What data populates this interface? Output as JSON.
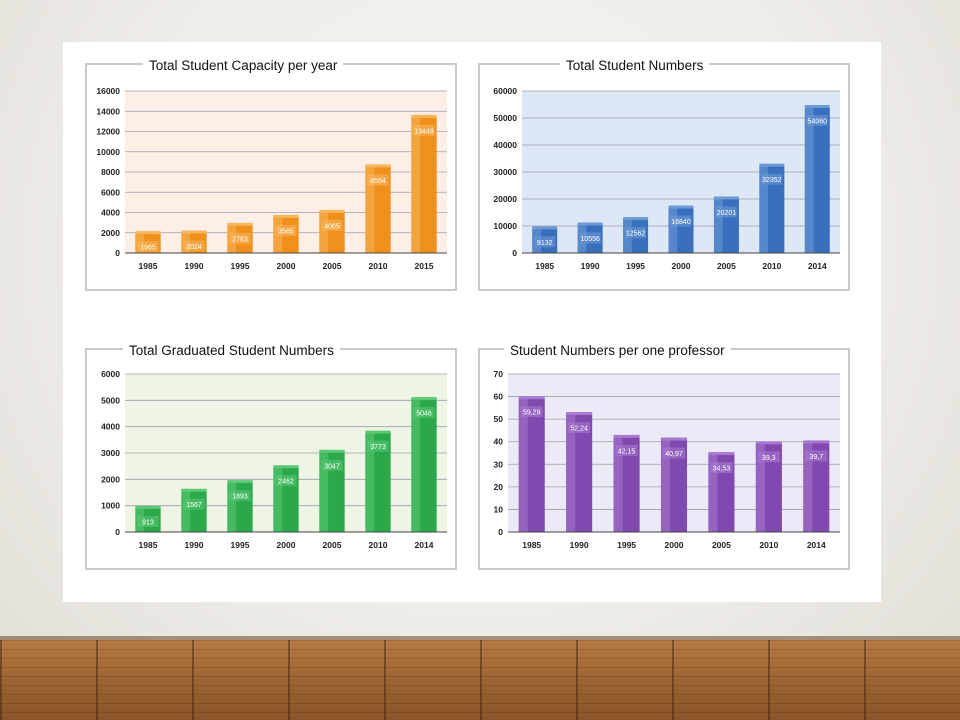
{
  "slide": {
    "colors": {
      "background": "#f3f1ec",
      "panel": "#ffffff",
      "floor": "#9c6433"
    }
  },
  "chart_data": [
    {
      "type": "bar",
      "title": "Total Student Capacity per year",
      "categories": [
        "1985",
        "1990",
        "1995",
        "2000",
        "2005",
        "2010",
        "2015"
      ],
      "values": [
        1965,
        2024,
        2783,
        3565,
        4065,
        8554,
        13448
      ],
      "value_labels": [
        "1965",
        "2024",
        "2783",
        "3565",
        "4065",
        "8554",
        "13448"
      ],
      "yticks": [
        "0",
        "2000",
        "4000",
        "6000",
        "8000",
        "10000",
        "12000",
        "14000",
        "16000"
      ],
      "ylim": [
        0,
        16000
      ],
      "xlabel": "",
      "ylabel": "",
      "grid": true,
      "colors": {
        "bar": "#f0901c",
        "bar_light": "#f8b55a",
        "plot_bg": "#fdeee6"
      }
    },
    {
      "type": "bar",
      "title": "Total Student Numbers",
      "categories": [
        "1985",
        "1990",
        "1995",
        "2000",
        "2005",
        "2010",
        "2014"
      ],
      "values": [
        9132,
        10556,
        12562,
        16840,
        20201,
        32352,
        54060
      ],
      "value_labels": [
        "9132",
        "10556",
        "12562",
        "16840",
        "20201",
        "32352",
        "54060"
      ],
      "yticks": [
        "0",
        "10000",
        "20000",
        "30000",
        "40000",
        "50000",
        "60000"
      ],
      "ylim": [
        0,
        60000
      ],
      "xlabel": "",
      "ylabel": "",
      "grid": true,
      "colors": {
        "bar": "#3a6fbd",
        "bar_light": "#6c9ad6",
        "plot_bg": "#dde7f5"
      }
    },
    {
      "type": "bar",
      "title": "Total Graduated Student Numbers",
      "categories": [
        "1985",
        "1990",
        "1995",
        "2000",
        "2005",
        "2010",
        "2014"
      ],
      "values": [
        913,
        1567,
        1893,
        2462,
        3047,
        3773,
        5046
      ],
      "value_labels": [
        "913",
        "1567",
        "1893",
        "2462",
        "3047",
        "3773",
        "5046"
      ],
      "yticks": [
        "0",
        "1000",
        "2000",
        "3000",
        "4000",
        "5000",
        "6000"
      ],
      "ylim": [
        0,
        6000
      ],
      "xlabel": "",
      "ylabel": "",
      "grid": true,
      "colors": {
        "bar": "#2aa84a",
        "bar_light": "#5cc874",
        "plot_bg": "#eef5e4"
      }
    },
    {
      "type": "bar",
      "title": "Student Numbers per one professor",
      "categories": [
        "1985",
        "1990",
        "1995",
        "2000",
        "2005",
        "2010",
        "2014"
      ],
      "values": [
        59.29,
        52.24,
        42.15,
        40.97,
        34.53,
        39.3,
        39.7
      ],
      "value_labels": [
        "59,29",
        "52,24",
        "42,15",
        "40,97",
        "34,53",
        "39,3",
        "39,7"
      ],
      "yticks": [
        "0",
        "10",
        "20",
        "30",
        "40",
        "50",
        "60",
        "70"
      ],
      "ylim": [
        0,
        70
      ],
      "xlabel": "",
      "ylabel": "",
      "grid": true,
      "colors": {
        "bar": "#8149b0",
        "bar_light": "#a878d0",
        "plot_bg": "#eceaf6"
      }
    }
  ]
}
